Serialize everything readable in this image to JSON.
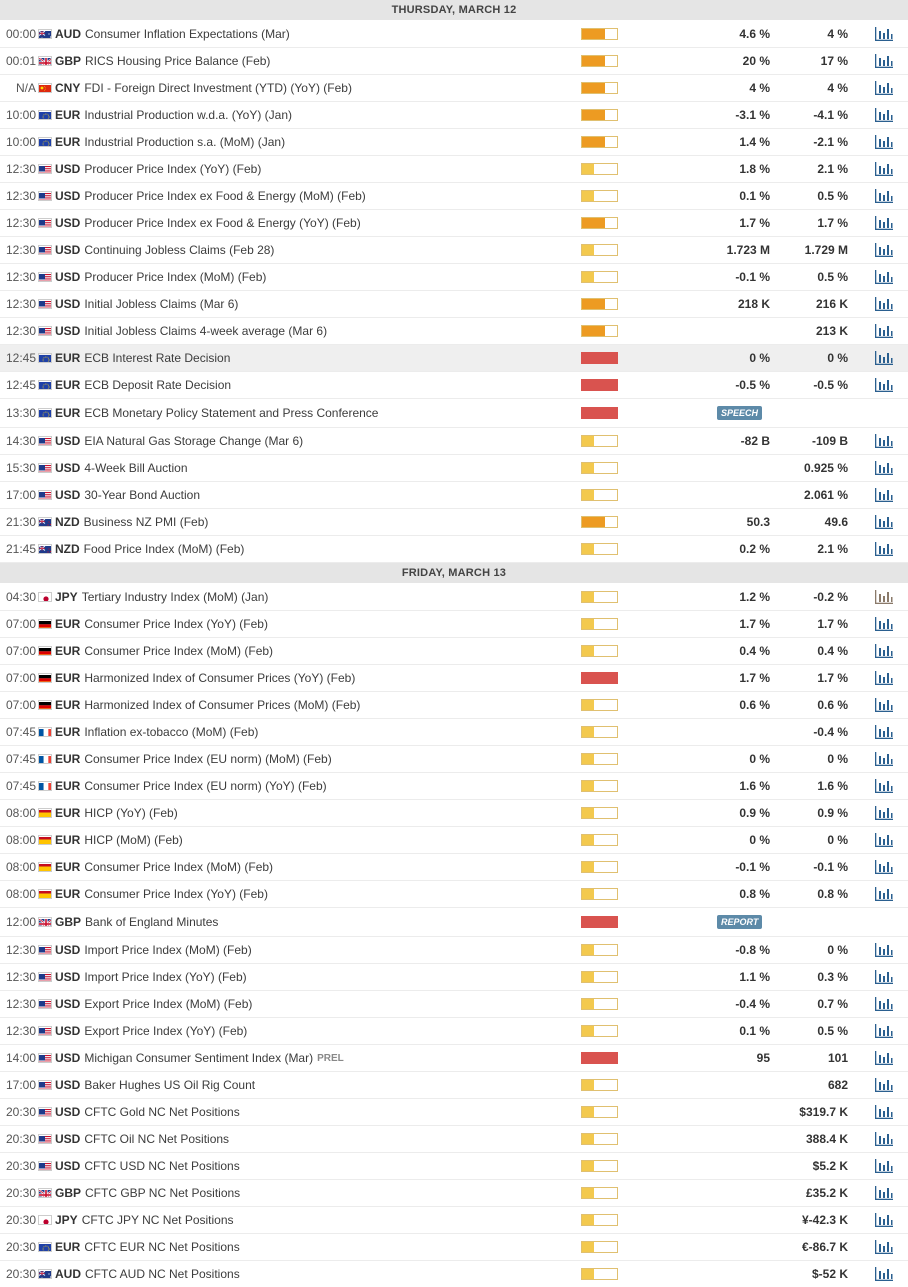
{
  "colors": {
    "header_bg": "#e5e5e5",
    "impact_low": "#f3c94e",
    "impact_medium": "#ed9b22",
    "impact_high": "#d9534f",
    "tag_bg": "#5d8aa8",
    "chart_icon": "#2a5f8f"
  },
  "days": [
    {
      "title": "THURSDAY, MARCH 12",
      "events": [
        {
          "time": "00:00",
          "flag": "au",
          "currency": "AUD",
          "name": "Consumer Inflation Expectations (Mar)",
          "impact": "medium",
          "actual": "4.6 %",
          "previous": "4 %",
          "chart": true
        },
        {
          "time": "00:01",
          "flag": "gb",
          "currency": "GBP",
          "name": "RICS Housing Price Balance (Feb)",
          "impact": "medium",
          "actual": "20 %",
          "previous": "17 %",
          "chart": true
        },
        {
          "time": "N/A",
          "flag": "cn",
          "currency": "CNY",
          "name": "FDI - Foreign Direct Investment (YTD) (YoY) (Feb)",
          "impact": "medium",
          "actual": "4 %",
          "previous": "4 %",
          "chart": true
        },
        {
          "time": "10:00",
          "flag": "eu",
          "currency": "EUR",
          "name": "Industrial Production w.d.a. (YoY) (Jan)",
          "impact": "medium",
          "actual": "-3.1 %",
          "previous": "-4.1 %",
          "chart": true
        },
        {
          "time": "10:00",
          "flag": "eu",
          "currency": "EUR",
          "name": "Industrial Production s.a. (MoM) (Jan)",
          "impact": "medium",
          "actual": "1.4 %",
          "previous": "-2.1 %",
          "chart": true
        },
        {
          "time": "12:30",
          "flag": "us",
          "currency": "USD",
          "name": "Producer Price Index (YoY) (Feb)",
          "impact": "low",
          "actual": "1.8 %",
          "previous": "2.1 %",
          "chart": true
        },
        {
          "time": "12:30",
          "flag": "us",
          "currency": "USD",
          "name": "Producer Price Index ex Food & Energy (MoM) (Feb)",
          "impact": "low",
          "actual": "0.1 %",
          "previous": "0.5 %",
          "chart": true
        },
        {
          "time": "12:30",
          "flag": "us",
          "currency": "USD",
          "name": "Producer Price Index ex Food & Energy (YoY) (Feb)",
          "impact": "medium",
          "actual": "1.7 %",
          "previous": "1.7 %",
          "chart": true
        },
        {
          "time": "12:30",
          "flag": "us",
          "currency": "USD",
          "name": "Continuing Jobless Claims (Feb 28)",
          "impact": "low",
          "actual": "1.723 M",
          "previous": "1.729 M",
          "chart": true
        },
        {
          "time": "12:30",
          "flag": "us",
          "currency": "USD",
          "name": "Producer Price Index (MoM) (Feb)",
          "impact": "low",
          "actual": "-0.1 %",
          "previous": "0.5 %",
          "chart": true
        },
        {
          "time": "12:30",
          "flag": "us",
          "currency": "USD",
          "name": "Initial Jobless Claims (Mar 6)",
          "impact": "medium",
          "actual": "218 K",
          "previous": "216 K",
          "chart": true
        },
        {
          "time": "12:30",
          "flag": "us",
          "currency": "USD",
          "name": "Initial Jobless Claims 4-week average (Mar 6)",
          "impact": "medium",
          "actual": "",
          "previous": "213 K",
          "chart": true
        },
        {
          "time": "12:45",
          "flag": "eu",
          "currency": "EUR",
          "name": "ECB Interest Rate Decision",
          "impact": "high",
          "actual": "0 %",
          "previous": "0 %",
          "chart": true,
          "highlight": true
        },
        {
          "time": "12:45",
          "flag": "eu",
          "currency": "EUR",
          "name": "ECB Deposit Rate Decision",
          "impact": "high",
          "actual": "-0.5 %",
          "previous": "-0.5 %",
          "chart": true
        },
        {
          "time": "13:30",
          "flag": "eu",
          "currency": "EUR",
          "name": "ECB Monetary Policy Statement and Press Conference",
          "impact": "high",
          "tag": "SPEECH",
          "actual": "",
          "previous": "",
          "chart": false
        },
        {
          "time": "14:30",
          "flag": "us",
          "currency": "USD",
          "name": "EIA Natural Gas Storage Change (Mar 6)",
          "impact": "low",
          "actual": "-82 B",
          "previous": "-109 B",
          "chart": true
        },
        {
          "time": "15:30",
          "flag": "us",
          "currency": "USD",
          "name": "4-Week Bill Auction",
          "impact": "low",
          "actual": "",
          "previous": "0.925 %",
          "chart": true
        },
        {
          "time": "17:00",
          "flag": "us",
          "currency": "USD",
          "name": "30-Year Bond Auction",
          "impact": "low",
          "actual": "",
          "previous": "2.061 %",
          "chart": true
        },
        {
          "time": "21:30",
          "flag": "nz",
          "currency": "NZD",
          "name": "Business NZ PMI (Feb)",
          "impact": "medium",
          "actual": "50.3",
          "previous": "49.6",
          "chart": true
        },
        {
          "time": "21:45",
          "flag": "nz",
          "currency": "NZD",
          "name": "Food Price Index (MoM) (Feb)",
          "impact": "low",
          "actual": "0.2 %",
          "previous": "2.1 %",
          "chart": true
        }
      ]
    },
    {
      "title": "FRIDAY, MARCH 13",
      "events": [
        {
          "time": "04:30",
          "flag": "jp",
          "currency": "JPY",
          "name": "Tertiary Industry Index (MoM) (Jan)",
          "impact": "low",
          "actual": "1.2 %",
          "previous": "-0.2 %",
          "chart": true,
          "chart_muted": true
        },
        {
          "time": "07:00",
          "flag": "de",
          "currency": "EUR",
          "name": "Consumer Price Index (YoY) (Feb)",
          "impact": "low",
          "actual": "1.7 %",
          "previous": "1.7 %",
          "chart": true
        },
        {
          "time": "07:00",
          "flag": "de",
          "currency": "EUR",
          "name": "Consumer Price Index (MoM) (Feb)",
          "impact": "low",
          "actual": "0.4 %",
          "previous": "0.4 %",
          "chart": true
        },
        {
          "time": "07:00",
          "flag": "de",
          "currency": "EUR",
          "name": "Harmonized Index of Consumer Prices (YoY) (Feb)",
          "impact": "high",
          "actual": "1.7 %",
          "previous": "1.7 %",
          "chart": true
        },
        {
          "time": "07:00",
          "flag": "de",
          "currency": "EUR",
          "name": "Harmonized Index of Consumer Prices (MoM) (Feb)",
          "impact": "low",
          "actual": "0.6 %",
          "previous": "0.6 %",
          "chart": true
        },
        {
          "time": "07:45",
          "flag": "fr",
          "currency": "EUR",
          "name": "Inflation ex-tobacco (MoM) (Feb)",
          "impact": "low",
          "actual": "",
          "previous": "-0.4 %",
          "chart": true
        },
        {
          "time": "07:45",
          "flag": "fr",
          "currency": "EUR",
          "name": "Consumer Price Index (EU norm) (MoM) (Feb)",
          "impact": "low",
          "actual": "0 %",
          "previous": "0 %",
          "chart": true
        },
        {
          "time": "07:45",
          "flag": "fr",
          "currency": "EUR",
          "name": "Consumer Price Index (EU norm) (YoY) (Feb)",
          "impact": "low",
          "actual": "1.6 %",
          "previous": "1.6 %",
          "chart": true
        },
        {
          "time": "08:00",
          "flag": "es",
          "currency": "EUR",
          "name": "HICP (YoY) (Feb)",
          "impact": "low",
          "actual": "0.9 %",
          "previous": "0.9 %",
          "chart": true
        },
        {
          "time": "08:00",
          "flag": "es",
          "currency": "EUR",
          "name": "HICP (MoM) (Feb)",
          "impact": "low",
          "actual": "0 %",
          "previous": "0 %",
          "chart": true
        },
        {
          "time": "08:00",
          "flag": "es",
          "currency": "EUR",
          "name": "Consumer Price Index (MoM) (Feb)",
          "impact": "low",
          "actual": "-0.1 %",
          "previous": "-0.1 %",
          "chart": true
        },
        {
          "time": "08:00",
          "flag": "es",
          "currency": "EUR",
          "name": "Consumer Price Index (YoY) (Feb)",
          "impact": "low",
          "actual": "0.8 %",
          "previous": "0.8 %",
          "chart": true
        },
        {
          "time": "12:00",
          "flag": "gb",
          "currency": "GBP",
          "name": "Bank of England Minutes",
          "impact": "high",
          "tag": "REPORT",
          "actual": "",
          "previous": "",
          "chart": false
        },
        {
          "time": "12:30",
          "flag": "us",
          "currency": "USD",
          "name": "Import Price Index (MoM) (Feb)",
          "impact": "low",
          "actual": "-0.8 %",
          "previous": "0 %",
          "chart": true
        },
        {
          "time": "12:30",
          "flag": "us",
          "currency": "USD",
          "name": "Import Price Index (YoY) (Feb)",
          "impact": "low",
          "actual": "1.1 %",
          "previous": "0.3 %",
          "chart": true
        },
        {
          "time": "12:30",
          "flag": "us",
          "currency": "USD",
          "name": "Export Price Index (MoM) (Feb)",
          "impact": "low",
          "actual": "-0.4 %",
          "previous": "0.7 %",
          "chart": true
        },
        {
          "time": "12:30",
          "flag": "us",
          "currency": "USD",
          "name": "Export Price Index (YoY) (Feb)",
          "impact": "low",
          "actual": "0.1 %",
          "previous": "0.5 %",
          "chart": true
        },
        {
          "time": "14:00",
          "flag": "us",
          "currency": "USD",
          "name": "Michigan Consumer Sentiment Index (Mar)",
          "prel": "PREL",
          "impact": "high",
          "actual": "95",
          "previous": "101",
          "chart": true
        },
        {
          "time": "17:00",
          "flag": "us",
          "currency": "USD",
          "name": "Baker Hughes US Oil Rig Count",
          "impact": "low",
          "actual": "",
          "previous": "682",
          "chart": true
        },
        {
          "time": "20:30",
          "flag": "us",
          "currency": "USD",
          "name": "CFTC Gold NC Net Positions",
          "impact": "low",
          "actual": "",
          "previous": "$319.7 K",
          "chart": true
        },
        {
          "time": "20:30",
          "flag": "us",
          "currency": "USD",
          "name": "CFTC Oil NC Net Positions",
          "impact": "low",
          "actual": "",
          "previous": "388.4 K",
          "chart": true
        },
        {
          "time": "20:30",
          "flag": "us",
          "currency": "USD",
          "name": "CFTC USD NC Net Positions",
          "impact": "low",
          "actual": "",
          "previous": "$5.2 K",
          "chart": true
        },
        {
          "time": "20:30",
          "flag": "gb",
          "currency": "GBP",
          "name": "CFTC GBP NC Net Positions",
          "impact": "low",
          "actual": "",
          "previous": "£35.2 K",
          "chart": true
        },
        {
          "time": "20:30",
          "flag": "jp",
          "currency": "JPY",
          "name": "CFTC JPY NC Net Positions",
          "impact": "low",
          "actual": "",
          "previous": "¥-42.3 K",
          "chart": true
        },
        {
          "time": "20:30",
          "flag": "eu",
          "currency": "EUR",
          "name": "CFTC EUR NC Net Positions",
          "impact": "low",
          "actual": "",
          "previous": "€-86.7 K",
          "chart": true
        },
        {
          "time": "20:30",
          "flag": "au",
          "currency": "AUD",
          "name": "CFTC AUD NC Net Positions",
          "impact": "low",
          "actual": "",
          "previous": "$-52 K",
          "chart": true
        }
      ]
    }
  ]
}
